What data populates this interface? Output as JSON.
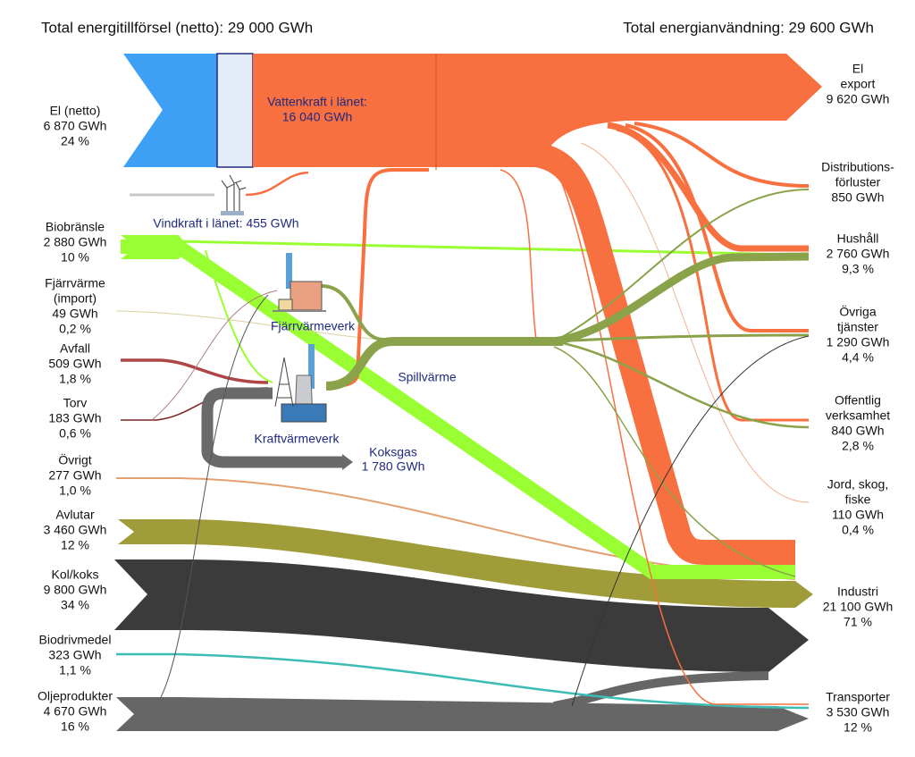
{
  "header": {
    "left_title": "Total energitillförsel (netto): 29 000 GWh",
    "right_title": "Total energianvändning: 29 600 GWh"
  },
  "sources": [
    {
      "lines": [
        "El (netto)",
        "6 870 GWh",
        "24 %"
      ]
    },
    {
      "lines": [
        "Biobränsle",
        "2 880 GWh",
        "10 %"
      ]
    },
    {
      "lines": [
        "Fjärrvärme",
        "(import)",
        "49 GWh",
        "0,2 %"
      ]
    },
    {
      "lines": [
        "Avfall",
        "509 GWh",
        "1,8 %"
      ]
    },
    {
      "lines": [
        "Torv",
        "183 GWh",
        "0,6 %"
      ]
    },
    {
      "lines": [
        "Övrigt",
        "277 GWh",
        "1,0 %"
      ]
    },
    {
      "lines": [
        "Avlutar",
        "3 460 GWh",
        "12 %"
      ]
    },
    {
      "lines": [
        "Kol/koks",
        "9 800 GWh",
        "34 %"
      ]
    },
    {
      "lines": [
        "Biodrivmedel",
        "323 GWh",
        "1,1 %"
      ]
    },
    {
      "lines": [
        "Oljeprodukter",
        "4 670 GWh",
        "16 %"
      ]
    }
  ],
  "uses": [
    {
      "lines": [
        "El",
        "export",
        "9 620 GWh"
      ]
    },
    {
      "lines": [
        "Distributions-",
        "förluster",
        "850 GWh"
      ]
    },
    {
      "lines": [
        "Hushåll",
        "2 760 GWh",
        "9,3 %"
      ]
    },
    {
      "lines": [
        "Övriga",
        "tjänster",
        "1 290 GWh",
        "4,4 %"
      ]
    },
    {
      "lines": [
        "Offentlig",
        "verksamhet",
        "840 GWh",
        "2,8 %"
      ]
    },
    {
      "lines": [
        "Jord, skog,",
        "fiske",
        "110 GWh",
        "0,4 %"
      ]
    },
    {
      "lines": [
        "Industri",
        "21 100 GWh",
        "71 %"
      ]
    },
    {
      "lines": [
        "Transporter",
        "3 530 GWh",
        "12 %"
      ]
    }
  ],
  "internal": {
    "hydro": [
      "Vattenkraft i länet:",
      "16 040 GWh"
    ],
    "wind": "Vindkraft i länet: 455 GWh",
    "district_heating_plant": "Fjärrvärmeverk",
    "chp_plant": "Kraftvärmeverk",
    "waste_heat": "Spillvärme",
    "coke_gas": [
      "Koksgas",
      "1 780 GWh"
    ]
  }
}
